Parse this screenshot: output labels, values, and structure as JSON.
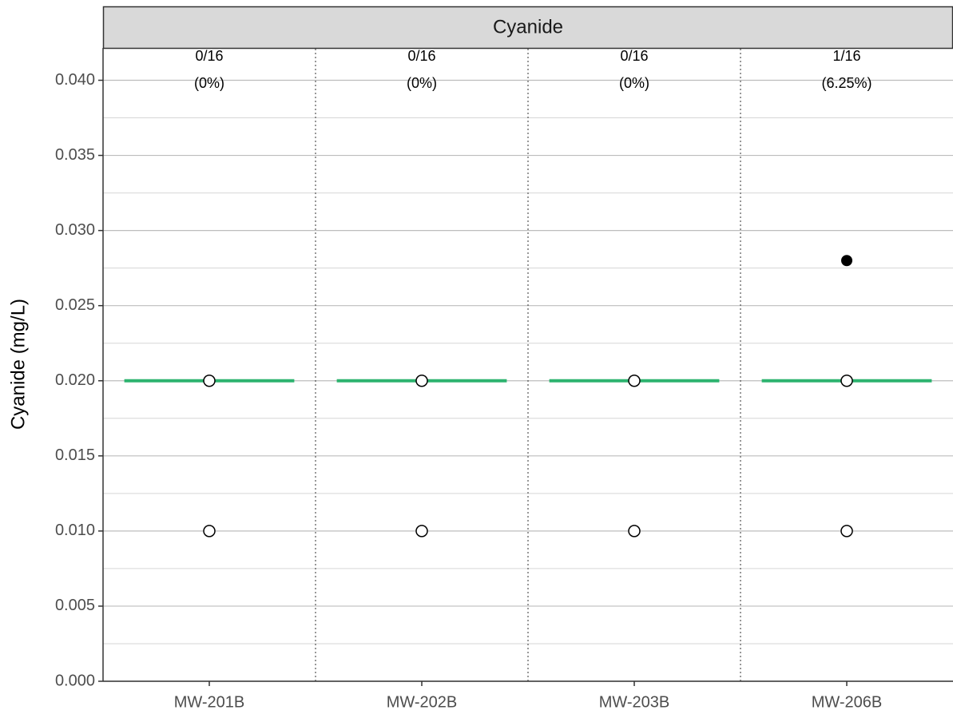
{
  "chart_data": {
    "type": "strip",
    "strip_title": "Cyanide",
    "ylabel": "Cyanide (mg/L)",
    "categories": [
      "MW-201B",
      "MW-202B",
      "MW-203B",
      "MW-206B"
    ],
    "counts": [
      "0/16",
      "0/16",
      "0/16",
      "1/16"
    ],
    "percents": [
      "(0%)",
      "(0%)",
      "(0%)",
      "(6.25%)"
    ],
    "nondetects": [
      [
        0.02,
        0.01
      ],
      [
        0.02,
        0.01
      ],
      [
        0.02,
        0.01
      ],
      [
        0.02,
        0.01
      ]
    ],
    "detects": [
      [],
      [],
      [],
      [
        0.028
      ]
    ],
    "lines": [
      0.02,
      0.02,
      0.02,
      0.02
    ],
    "line_color": "#2db36f",
    "ylim": [
      0,
      0.0421
    ],
    "yticks": [
      {
        "value": 0,
        "label": "0.000"
      },
      {
        "value": 0.005,
        "label": "0.005"
      },
      {
        "value": 0.01,
        "label": "0.010"
      },
      {
        "value": 0.015,
        "label": "0.015"
      },
      {
        "value": 0.02,
        "label": "0.020"
      },
      {
        "value": 0.025,
        "label": "0.025"
      },
      {
        "value": 0.03,
        "label": "0.030"
      },
      {
        "value": 0.035,
        "label": "0.035"
      },
      {
        "value": 0.04,
        "label": "0.040"
      }
    ],
    "minor_yticks": [
      0.0025,
      0.0075,
      0.0125,
      0.0175,
      0.0225,
      0.0275,
      0.0325,
      0.0375
    ],
    "grid": true
  }
}
